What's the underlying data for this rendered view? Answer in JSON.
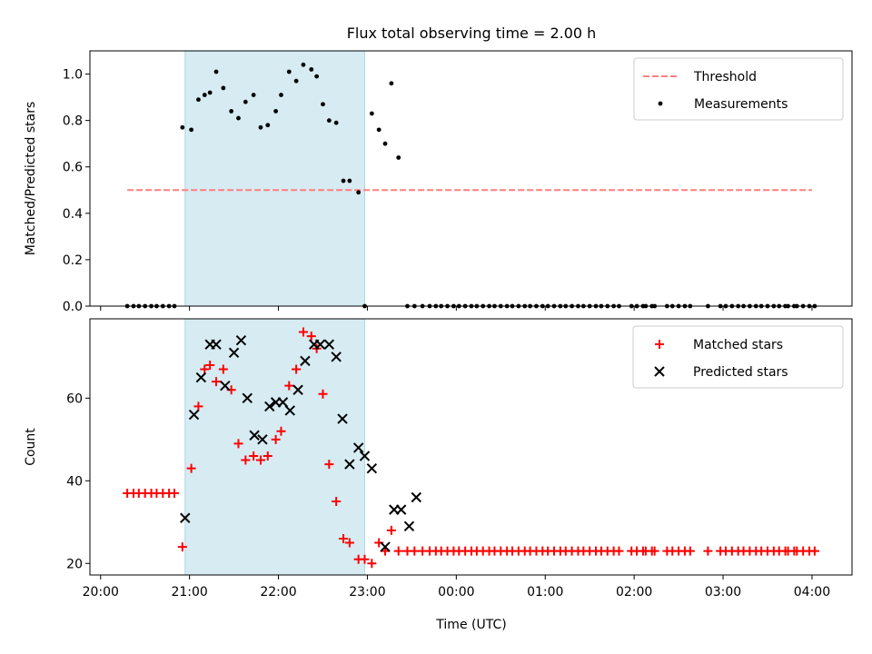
{
  "title": "Flux total observing time = 2.00 h",
  "x_axis": {
    "label": "Time (UTC)",
    "ticks": [
      {
        "value": 20,
        "label": "20:00"
      },
      {
        "value": 21,
        "label": "21:00"
      },
      {
        "value": 22,
        "label": "22:00"
      },
      {
        "value": 23,
        "label": "23:00"
      },
      {
        "value": 24,
        "label": "00:00"
      },
      {
        "value": 25,
        "label": "01:00"
      },
      {
        "value": 26,
        "label": "02:00"
      },
      {
        "value": 27,
        "label": "03:00"
      },
      {
        "value": 28,
        "label": "04:00"
      }
    ]
  },
  "colors": {
    "threshold": "#ff7f7f",
    "measurements": "#000000",
    "matched": "#ff0000",
    "predicted": "#000000",
    "span": "#add8e6"
  },
  "chart_data": [
    {
      "type": "scatter",
      "title": "Flux total observing time = 2.00 h",
      "xlabel": "",
      "ylabel": "Matched/Predicted stars",
      "ylim": [
        0,
        1.1
      ],
      "xlim": [
        19.88,
        28.45
      ],
      "yticks": [
        {
          "value": 0.0,
          "label": "0.0"
        },
        {
          "value": 0.2,
          "label": "0.2"
        },
        {
          "value": 0.4,
          "label": "0.4"
        },
        {
          "value": 0.6,
          "label": "0.6"
        },
        {
          "value": 0.8,
          "label": "0.8"
        },
        {
          "value": 1.0,
          "label": "1.0"
        }
      ],
      "highlight_span": {
        "start": 20.95,
        "end": 22.97
      },
      "legend_position": "top-right",
      "series": [
        {
          "name": "Threshold",
          "type": "line",
          "style": "dashed",
          "x": [
            20.3,
            28.0
          ],
          "y": [
            0.5,
            0.5
          ]
        },
        {
          "name": "Measurements",
          "type": "scatter",
          "marker": "dot",
          "x": [
            20.3,
            20.37,
            20.43,
            20.5,
            20.57,
            20.63,
            20.7,
            20.77,
            20.83,
            20.92,
            21.02,
            21.1,
            21.17,
            21.23,
            21.3,
            21.38,
            21.47,
            21.55,
            21.63,
            21.72,
            21.8,
            21.88,
            21.97,
            22.03,
            22.12,
            22.2,
            22.28,
            22.37,
            22.43,
            22.5,
            22.57,
            22.65,
            22.73,
            22.8,
            22.9,
            22.97,
            23.05,
            23.13,
            23.2,
            23.27,
            23.35,
            23.45,
            23.53,
            23.62,
            23.7,
            23.77,
            23.83,
            23.9,
            23.97,
            24.03,
            24.1,
            24.17,
            24.23,
            24.3,
            24.37,
            24.43,
            24.5,
            24.57,
            24.63,
            24.7,
            24.77,
            24.83,
            24.9,
            24.97,
            25.03,
            25.1,
            25.17,
            25.23,
            25.3,
            25.37,
            25.43,
            25.5,
            25.57,
            25.63,
            25.7,
            25.77,
            25.83,
            25.97,
            26.03,
            26.1,
            26.13,
            26.2,
            26.23,
            26.37,
            26.43,
            26.5,
            26.57,
            26.63,
            26.83,
            26.97,
            27.03,
            27.1,
            27.17,
            27.23,
            27.3,
            27.37,
            27.43,
            27.5,
            27.57,
            27.63,
            27.7,
            27.73,
            27.8,
            27.83,
            27.9,
            27.97,
            28.03
          ],
          "y": [
            0,
            0,
            0,
            0,
            0,
            0,
            0,
            0,
            0,
            0.77,
            0.76,
            0.89,
            0.91,
            0.92,
            1.01,
            0.94,
            0.84,
            0.81,
            0.88,
            0.91,
            0.77,
            0.78,
            0.84,
            0.91,
            1.01,
            0.97,
            1.04,
            1.02,
            0.99,
            0.87,
            0.8,
            0.79,
            0.54,
            0.54,
            0.49,
            0,
            0.83,
            0.76,
            0.7,
            0.96,
            0.64,
            0,
            0,
            0,
            0,
            0,
            0,
            0,
            0,
            0,
            0,
            0,
            0,
            0,
            0,
            0,
            0,
            0,
            0,
            0,
            0,
            0,
            0,
            0,
            0,
            0,
            0,
            0,
            0,
            0,
            0,
            0,
            0,
            0,
            0,
            0,
            0,
            0,
            0,
            0,
            0,
            0,
            0,
            0,
            0,
            0,
            0,
            0,
            0,
            0,
            0,
            0,
            0,
            0,
            0,
            0,
            0,
            0,
            0,
            0,
            0,
            0,
            0,
            0,
            0,
            0,
            0
          ]
        }
      ]
    },
    {
      "type": "scatter",
      "title": "",
      "xlabel": "Time (UTC)",
      "ylabel": "Count",
      "ylim": [
        17.2,
        79.2
      ],
      "xlim": [
        19.88,
        28.45
      ],
      "yticks": [
        {
          "value": 20,
          "label": "20"
        },
        {
          "value": 40,
          "label": "40"
        },
        {
          "value": 60,
          "label": "60"
        }
      ],
      "highlight_span": {
        "start": 20.95,
        "end": 22.97
      },
      "legend_position": "top-right",
      "series": [
        {
          "name": "Matched stars",
          "type": "scatter",
          "marker": "plus",
          "x": [
            20.3,
            20.37,
            20.43,
            20.5,
            20.57,
            20.63,
            20.7,
            20.77,
            20.83,
            20.92,
            21.02,
            21.1,
            21.17,
            21.23,
            21.3,
            21.38,
            21.47,
            21.55,
            21.63,
            21.72,
            21.8,
            21.88,
            21.97,
            22.03,
            22.12,
            22.2,
            22.28,
            22.37,
            22.43,
            22.5,
            22.57,
            22.65,
            22.73,
            22.8,
            22.9,
            22.97,
            23.05,
            23.13,
            23.2,
            23.27,
            23.35,
            23.45,
            23.53,
            23.62,
            23.7,
            23.77,
            23.83,
            23.9,
            23.97,
            24.03,
            24.1,
            24.17,
            24.23,
            24.3,
            24.37,
            24.43,
            24.5,
            24.57,
            24.63,
            24.7,
            24.77,
            24.83,
            24.9,
            24.97,
            25.03,
            25.1,
            25.17,
            25.23,
            25.3,
            25.37,
            25.43,
            25.5,
            25.57,
            25.63,
            25.7,
            25.77,
            25.83,
            25.97,
            26.03,
            26.1,
            26.13,
            26.2,
            26.23,
            26.37,
            26.43,
            26.5,
            26.57,
            26.63,
            26.83,
            26.97,
            27.03,
            27.1,
            27.17,
            27.23,
            27.3,
            27.37,
            27.43,
            27.5,
            27.57,
            27.63,
            27.7,
            27.73,
            27.8,
            27.83,
            27.9,
            27.97,
            28.03
          ],
          "y": [
            37,
            37,
            37,
            37,
            37,
            37,
            37,
            37,
            37,
            24,
            43,
            58,
            67,
            68,
            64,
            67,
            62,
            49,
            45,
            46,
            45,
            46,
            50,
            52,
            63,
            67,
            76,
            75,
            72,
            61,
            44,
            35,
            26,
            25,
            21,
            21,
            20,
            25,
            23,
            28,
            23,
            23,
            23,
            23,
            23,
            23,
            23,
            23,
            23,
            23,
            23,
            23,
            23,
            23,
            23,
            23,
            23,
            23,
            23,
            23,
            23,
            23,
            23,
            23,
            23,
            23,
            23,
            23,
            23,
            23,
            23,
            23,
            23,
            23,
            23,
            23,
            23,
            23,
            23,
            23,
            23,
            23,
            23,
            23,
            23,
            23,
            23,
            23,
            23,
            23,
            23,
            23,
            23,
            23,
            23,
            23,
            23,
            23,
            23,
            23,
            23,
            23,
            23,
            23,
            23,
            23,
            23
          ]
        },
        {
          "name": "Predicted stars",
          "type": "scatter",
          "marker": "x",
          "x": [
            20.95,
            21.05,
            21.13,
            21.23,
            21.3,
            21.4,
            21.5,
            21.58,
            21.65,
            21.73,
            21.82,
            21.9,
            21.97,
            22.05,
            22.13,
            22.22,
            22.3,
            22.4,
            22.47,
            22.57,
            22.65,
            22.72,
            22.8,
            22.9,
            22.97,
            23.05,
            23.2,
            23.3,
            23.38,
            23.47,
            23.55
          ],
          "y": [
            31,
            56,
            65,
            73,
            73,
            63,
            71,
            74,
            60,
            51,
            50,
            58,
            59,
            59,
            57,
            62,
            69,
            73,
            73,
            73,
            70,
            55,
            44,
            48,
            46,
            43,
            24,
            33,
            33,
            29,
            36
          ]
        }
      ]
    }
  ]
}
